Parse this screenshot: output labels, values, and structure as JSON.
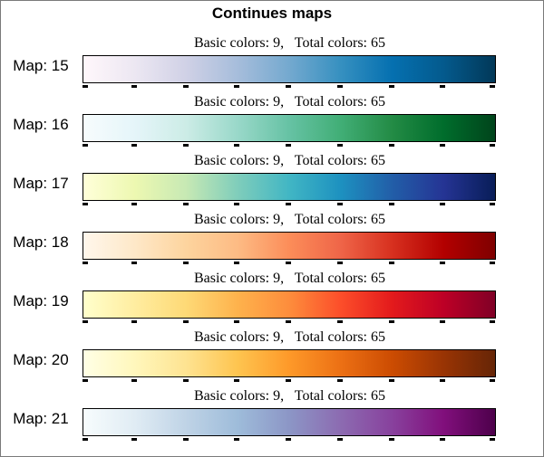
{
  "chart_data": {
    "type": "colormap",
    "title": "Continues maps",
    "maps": [
      {
        "label": "Map: 15",
        "caption": "Basic colors: 9,   Total colors: 65",
        "basic_colors": 9,
        "total_colors": 65,
        "colors": [
          "#fff7fb",
          "#ece7f2",
          "#d0d1e6",
          "#a6bddb",
          "#74a9cf",
          "#3690c0",
          "#0570b0",
          "#045a8d",
          "#023858"
        ]
      },
      {
        "label": "Map: 16",
        "caption": "Basic colors: 9,   Total colors: 65",
        "basic_colors": 9,
        "total_colors": 65,
        "colors": [
          "#f7fcfd",
          "#e5f5f9",
          "#ccece6",
          "#99d8c9",
          "#66c2a4",
          "#41ae76",
          "#238b45",
          "#006d2c",
          "#00441b"
        ]
      },
      {
        "label": "Map: 17",
        "caption": "Basic colors: 9,   Total colors: 65",
        "basic_colors": 9,
        "total_colors": 65,
        "colors": [
          "#ffffd9",
          "#edf8b1",
          "#c7e9b4",
          "#7fcdbb",
          "#41b6c4",
          "#1d91c0",
          "#225ea8",
          "#253494",
          "#081d58"
        ]
      },
      {
        "label": "Map: 18",
        "caption": "Basic colors: 9,   Total colors: 65",
        "basic_colors": 9,
        "total_colors": 65,
        "colors": [
          "#fff7ec",
          "#fee8c8",
          "#fdd49e",
          "#fdbb84",
          "#fc8d59",
          "#ef6548",
          "#d7301f",
          "#b30000",
          "#7f0000"
        ]
      },
      {
        "label": "Map: 19",
        "caption": "Basic colors: 9,   Total colors: 65",
        "basic_colors": 9,
        "total_colors": 65,
        "colors": [
          "#ffffcc",
          "#ffeda0",
          "#fed976",
          "#feb24c",
          "#fd8d3c",
          "#fc4e2a",
          "#e31a1c",
          "#bd0026",
          "#800026"
        ]
      },
      {
        "label": "Map: 20",
        "caption": "Basic colors: 9,   Total colors: 65",
        "basic_colors": 9,
        "total_colors": 65,
        "colors": [
          "#ffffe5",
          "#fff7bc",
          "#fee391",
          "#fec44f",
          "#fe9929",
          "#ec7014",
          "#cc4c02",
          "#993404",
          "#662506"
        ]
      },
      {
        "label": "Map: 21",
        "caption": "Basic colors: 9,   Total colors: 65",
        "basic_colors": 9,
        "total_colors": 65,
        "colors": [
          "#f7fcfd",
          "#e0ecf4",
          "#bfd3e6",
          "#9ebcda",
          "#8c96c6",
          "#8c6bb1",
          "#88419d",
          "#810f7c",
          "#4d004b"
        ]
      }
    ]
  }
}
